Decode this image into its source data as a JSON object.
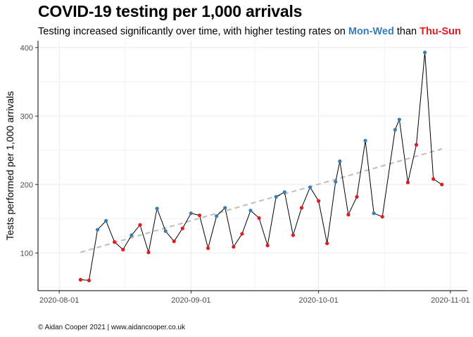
{
  "title": "COVID-19 testing per 1,000 arrivals",
  "subtitle": {
    "prefix": "Testing increased significantly over time, with higher testing rates on ",
    "group_a": "Mon-Wed",
    "middle": " than ",
    "group_b": "Thu-Sun"
  },
  "caption": "© Aidan Cooper 2021 | www.aidancooper.co.uk",
  "colors": {
    "mon_wed": "#377eb8",
    "thu_sun": "#e41a1c",
    "line": "#000000",
    "trend": "#bdbdbd",
    "grid": "#ebebeb"
  },
  "chart_data": {
    "type": "line",
    "title": "COVID-19 testing per 1,000 arrivals",
    "subtitle": "Testing increased significantly over time, with higher testing rates on Mon-Wed than Thu-Sun",
    "xlabel": "",
    "ylabel": "Tests performed per 1,000 arrivals",
    "x_ticks": [
      "2020-08-01",
      "2020-09-01",
      "2020-10-01",
      "2020-11-01"
    ],
    "y_ticks": [
      100,
      200,
      300,
      400
    ],
    "xlim": [
      "2020-07-27",
      "2020-11-05"
    ],
    "ylim": [
      45,
      410
    ],
    "grid": true,
    "legend": "none (groups identified in subtitle colors)",
    "series": [
      {
        "points": [
          {
            "x": "2020-08-06",
            "y": 61,
            "group": "Thu-Sun"
          },
          {
            "x": "2020-08-08",
            "y": 60,
            "group": "Thu-Sun"
          },
          {
            "x": "2020-08-10",
            "y": 134,
            "group": "Mon-Wed"
          },
          {
            "x": "2020-08-12",
            "y": 147,
            "group": "Mon-Wed"
          },
          {
            "x": "2020-08-14",
            "y": 116,
            "group": "Thu-Sun"
          },
          {
            "x": "2020-08-16",
            "y": 105,
            "group": "Thu-Sun"
          },
          {
            "x": "2020-08-18",
            "y": 126,
            "group": "Mon-Wed"
          },
          {
            "x": "2020-08-20",
            "y": 141,
            "group": "Thu-Sun"
          },
          {
            "x": "2020-08-22",
            "y": 101,
            "group": "Thu-Sun"
          },
          {
            "x": "2020-08-24",
            "y": 165,
            "group": "Mon-Wed"
          },
          {
            "x": "2020-08-26",
            "y": 132,
            "group": "Mon-Wed"
          },
          {
            "x": "2020-08-28",
            "y": 117,
            "group": "Thu-Sun"
          },
          {
            "x": "2020-08-30",
            "y": 136,
            "group": "Thu-Sun"
          },
          {
            "x": "2020-09-01",
            "y": 158,
            "group": "Mon-Wed"
          },
          {
            "x": "2020-09-03",
            "y": 155,
            "group": "Thu-Sun"
          },
          {
            "x": "2020-09-05",
            "y": 107,
            "group": "Thu-Sun"
          },
          {
            "x": "2020-09-07",
            "y": 154,
            "group": "Mon-Wed"
          },
          {
            "x": "2020-09-09",
            "y": 166,
            "group": "Mon-Wed"
          },
          {
            "x": "2020-09-11",
            "y": 109,
            "group": "Thu-Sun"
          },
          {
            "x": "2020-09-13",
            "y": 128,
            "group": "Thu-Sun"
          },
          {
            "x": "2020-09-15",
            "y": 162,
            "group": "Mon-Wed"
          },
          {
            "x": "2020-09-17",
            "y": 151,
            "group": "Thu-Sun"
          },
          {
            "x": "2020-09-19",
            "y": 111,
            "group": "Thu-Sun"
          },
          {
            "x": "2020-09-21",
            "y": 182,
            "group": "Mon-Wed"
          },
          {
            "x": "2020-09-23",
            "y": 189,
            "group": "Mon-Wed"
          },
          {
            "x": "2020-09-25",
            "y": 126,
            "group": "Thu-Sun"
          },
          {
            "x": "2020-09-27",
            "y": 166,
            "group": "Thu-Sun"
          },
          {
            "x": "2020-09-29",
            "y": 196,
            "group": "Mon-Wed"
          },
          {
            "x": "2020-10-01",
            "y": 176,
            "group": "Thu-Sun"
          },
          {
            "x": "2020-10-03",
            "y": 114,
            "group": "Thu-Sun"
          },
          {
            "x": "2020-10-05",
            "y": 204,
            "group": "Mon-Wed"
          },
          {
            "x": "2020-10-06",
            "y": 234,
            "group": "Mon-Wed"
          },
          {
            "x": "2020-10-08",
            "y": 156,
            "group": "Thu-Sun"
          },
          {
            "x": "2020-10-10",
            "y": 182,
            "group": "Thu-Sun"
          },
          {
            "x": "2020-10-12",
            "y": 264,
            "group": "Mon-Wed"
          },
          {
            "x": "2020-10-14",
            "y": 158,
            "group": "Mon-Wed"
          },
          {
            "x": "2020-10-16",
            "y": 153,
            "group": "Thu-Sun"
          },
          {
            "x": "2020-10-19",
            "y": 280,
            "group": "Mon-Wed"
          },
          {
            "x": "2020-10-20",
            "y": 295,
            "group": "Mon-Wed"
          },
          {
            "x": "2020-10-22",
            "y": 203,
            "group": "Thu-Sun"
          },
          {
            "x": "2020-10-24",
            "y": 258,
            "group": "Thu-Sun"
          },
          {
            "x": "2020-10-26",
            "y": 393,
            "group": "Mon-Wed"
          },
          {
            "x": "2020-10-28",
            "y": 208,
            "group": "Thu-Sun"
          },
          {
            "x": "2020-10-30",
            "y": 200,
            "group": "Thu-Sun"
          }
        ]
      }
    ],
    "trend": {
      "type": "linear",
      "from": {
        "x": "2020-08-06",
        "y": 101
      },
      "to": {
        "x": "2020-10-30",
        "y": 252
      }
    }
  }
}
